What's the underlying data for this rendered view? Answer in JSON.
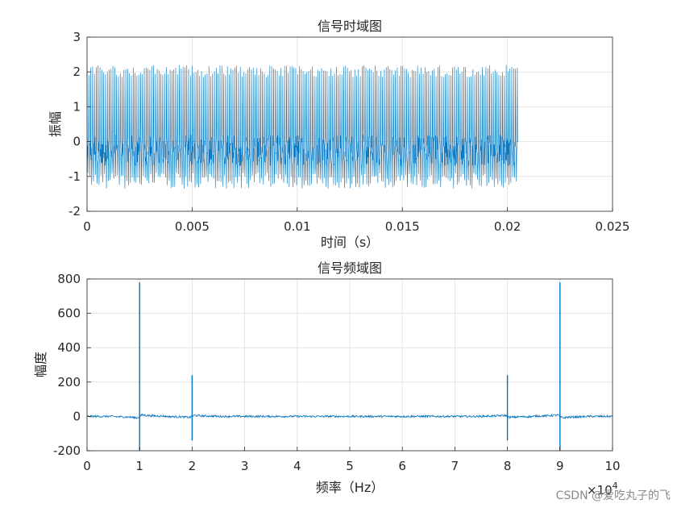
{
  "chart_data": [
    {
      "type": "line",
      "title": "信号时域图",
      "xlabel": "时间（s）",
      "ylabel": "振幅",
      "xlim": [
        0,
        0.025
      ],
      "ylim": [
        -2,
        3
      ],
      "xticks": [
        "0",
        "0.005",
        "0.01",
        "0.015",
        "0.02",
        "0.025"
      ],
      "yticks": [
        "-2",
        "-1",
        "0",
        "1",
        "2",
        "3"
      ],
      "grid": true,
      "color": "#0072BD",
      "signal": {
        "t_end": 0.0205,
        "upper_peak_range": [
          1.85,
          2.2
        ],
        "lower_envelope_range": [
          -1.35,
          -0.9
        ],
        "dense_band": [
          -0.7,
          0.2
        ]
      }
    },
    {
      "type": "line",
      "title": "信号频域图",
      "xlabel": "频率（Hz）",
      "ylabel": "幅度",
      "xlim": [
        0,
        100000
      ],
      "ylim": [
        -200,
        800
      ],
      "xticks": [
        "0",
        "1",
        "2",
        "3",
        "4",
        "5",
        "6",
        "7",
        "8",
        "9",
        "10"
      ],
      "x_exponent_label": "×10",
      "x_exponent": "4",
      "yticks": [
        "-200",
        "0",
        "200",
        "400",
        "600",
        "800"
      ],
      "grid": true,
      "color": "#0072BD",
      "baseline": 0,
      "peaks": [
        {
          "x": 10000,
          "y_max": 780,
          "y_min": -200
        },
        {
          "x": 20000,
          "y_max": 240,
          "y_min": -140
        },
        {
          "x": 80000,
          "y_max": 240,
          "y_min": -140
        },
        {
          "x": 90000,
          "y_max": 780,
          "y_min": -200
        }
      ]
    }
  ],
  "watermark": "CSDN @爱吃丸子的飞"
}
